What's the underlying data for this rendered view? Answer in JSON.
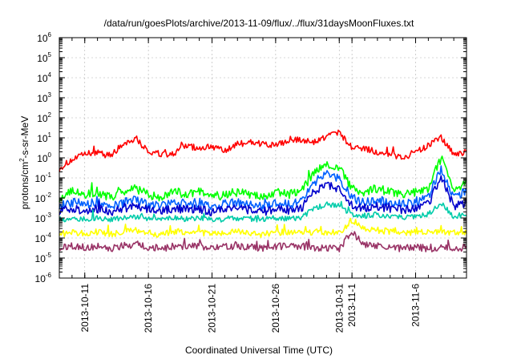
{
  "chart_data": {
    "type": "line",
    "title": "/data/run/goesPlots/archive/2013-11-09/flux/../flux/31daysMoonFluxes.txt",
    "xlabel": "Coordinated Universal Time (UTC)",
    "ylabel_prefix": "protons/cm",
    "ylabel_sup": "2",
    "ylabel_suffix": "-s-sr-MeV",
    "yscale": "log",
    "ylim": [
      1e-06,
      1000000
    ],
    "xlim": [
      "2013-10-09",
      "2013-11-10"
    ],
    "grid": true,
    "legend": "none",
    "ytick_labels": [
      {
        "value": 1e-06,
        "base": "10",
        "exp": "-6"
      },
      {
        "value": 1e-05,
        "base": "10",
        "exp": "-5"
      },
      {
        "value": 0.0001,
        "base": "10",
        "exp": "-4"
      },
      {
        "value": 0.001,
        "base": "10",
        "exp": "-3"
      },
      {
        "value": 0.01,
        "base": "10",
        "exp": "-2"
      },
      {
        "value": 0.1,
        "base": "10",
        "exp": "-1"
      },
      {
        "value": 1,
        "base": "10",
        "exp": "0"
      },
      {
        "value": 10,
        "base": "10",
        "exp": "1"
      },
      {
        "value": 100,
        "base": "10",
        "exp": "2"
      },
      {
        "value": 1000,
        "base": "10",
        "exp": "3"
      },
      {
        "value": 10000,
        "base": "10",
        "exp": "4"
      },
      {
        "value": 100000,
        "base": "10",
        "exp": "5"
      },
      {
        "value": 1000000,
        "base": "10",
        "exp": "6"
      }
    ],
    "xtick_labels": [
      {
        "date": "2013-10-11",
        "label": "2013-10-11"
      },
      {
        "date": "2013-10-16",
        "label": "2013-10-16"
      },
      {
        "date": "2013-10-21",
        "label": "2013-10-21"
      },
      {
        "date": "2013-10-26",
        "label": "2013-10-26"
      },
      {
        "date": "2013-10-31",
        "label": "2013-10-31"
      },
      {
        "date": "2013-11-01",
        "label": "2013-11-1"
      },
      {
        "date": "2013-11-06",
        "label": "2013-11-6"
      }
    ],
    "series": [
      {
        "color": "#ff0000",
        "x": [
          "2013-10-09",
          "2013-10-10",
          "2013-10-11",
          "2013-10-12",
          "2013-10-13",
          "2013-10-14",
          "2013-10-15",
          "2013-10-16",
          "2013-10-17",
          "2013-10-18",
          "2013-10-19",
          "2013-10-20",
          "2013-10-21",
          "2013-10-22",
          "2013-10-23",
          "2013-10-24",
          "2013-10-25",
          "2013-10-26",
          "2013-10-27",
          "2013-10-28",
          "2013-10-29",
          "2013-10-30",
          "2013-10-31",
          "2013-11-01",
          "2013-11-02",
          "2013-11-03",
          "2013-11-04",
          "2013-11-05",
          "2013-11-06",
          "2013-11-07",
          "2013-11-08",
          "2013-11-09",
          "2013-11-10"
        ],
        "values": [
          0.3,
          0.8,
          1.5,
          2,
          1.2,
          5,
          10,
          2,
          1.5,
          1.5,
          4,
          3,
          4,
          2,
          5,
          6,
          5,
          4,
          7,
          8,
          6,
          12,
          20,
          3,
          3,
          2,
          1.5,
          1,
          2,
          4,
          10,
          1.5,
          2
        ]
      },
      {
        "color": "#00ff00",
        "x": [
          "2013-10-09",
          "2013-10-10",
          "2013-10-11",
          "2013-10-12",
          "2013-10-13",
          "2013-10-14",
          "2013-10-15",
          "2013-10-16",
          "2013-10-17",
          "2013-10-18",
          "2013-10-19",
          "2013-10-20",
          "2013-10-21",
          "2013-10-22",
          "2013-10-23",
          "2013-10-24",
          "2013-10-25",
          "2013-10-26",
          "2013-10-27",
          "2013-10-28",
          "2013-10-29",
          "2013-10-30",
          "2013-10-31",
          "2013-11-01",
          "2013-11-02",
          "2013-11-03",
          "2013-11-04",
          "2013-11-05",
          "2013-11-06",
          "2013-11-07",
          "2013-11-08",
          "2013-11-09",
          "2013-11-10"
        ],
        "values": [
          0.01,
          0.02,
          0.015,
          0.02,
          0.01,
          0.02,
          0.03,
          0.015,
          0.01,
          0.02,
          0.015,
          0.02,
          0.01,
          0.015,
          0.02,
          0.015,
          0.01,
          0.02,
          0.015,
          0.02,
          0.2,
          0.5,
          0.3,
          0.03,
          0.02,
          0.03,
          0.02,
          0.015,
          0.02,
          0.03,
          1,
          0.03,
          0.05
        ]
      },
      {
        "color": "#0060ff",
        "x": [
          "2013-10-09",
          "2013-10-10",
          "2013-10-11",
          "2013-10-12",
          "2013-10-13",
          "2013-10-14",
          "2013-10-15",
          "2013-10-16",
          "2013-10-17",
          "2013-10-18",
          "2013-10-19",
          "2013-10-20",
          "2013-10-21",
          "2013-10-22",
          "2013-10-23",
          "2013-10-24",
          "2013-10-25",
          "2013-10-26",
          "2013-10-27",
          "2013-10-28",
          "2013-10-29",
          "2013-10-30",
          "2013-10-31",
          "2013-11-01",
          "2013-11-02",
          "2013-11-03",
          "2013-11-04",
          "2013-11-05",
          "2013-11-06",
          "2013-11-07",
          "2013-11-08",
          "2013-11-09",
          "2013-11-10"
        ],
        "values": [
          0.004,
          0.006,
          0.005,
          0.006,
          0.004,
          0.006,
          0.008,
          0.005,
          0.004,
          0.006,
          0.005,
          0.006,
          0.004,
          0.005,
          0.006,
          0.005,
          0.004,
          0.006,
          0.005,
          0.006,
          0.06,
          0.15,
          0.1,
          0.01,
          0.006,
          0.008,
          0.006,
          0.005,
          0.006,
          0.01,
          0.3,
          0.01,
          0.02
        ]
      },
      {
        "color": "#0000cc",
        "x": [
          "2013-10-09",
          "2013-10-10",
          "2013-10-11",
          "2013-10-12",
          "2013-10-13",
          "2013-10-14",
          "2013-10-15",
          "2013-10-16",
          "2013-10-17",
          "2013-10-18",
          "2013-10-19",
          "2013-10-20",
          "2013-10-21",
          "2013-10-22",
          "2013-10-23",
          "2013-10-24",
          "2013-10-25",
          "2013-10-26",
          "2013-10-27",
          "2013-10-28",
          "2013-10-29",
          "2013-10-30",
          "2013-10-31",
          "2013-11-01",
          "2013-11-02",
          "2013-11-03",
          "2013-11-04",
          "2013-11-05",
          "2013-11-06",
          "2013-11-07",
          "2013-11-08",
          "2013-11-09",
          "2013-11-10"
        ],
        "values": [
          0.002,
          0.003,
          0.0025,
          0.003,
          0.002,
          0.003,
          0.004,
          0.0025,
          0.002,
          0.003,
          0.0025,
          0.003,
          0.002,
          0.0025,
          0.003,
          0.0025,
          0.002,
          0.003,
          0.0025,
          0.003,
          0.02,
          0.05,
          0.03,
          0.004,
          0.003,
          0.004,
          0.003,
          0.0025,
          0.003,
          0.005,
          0.1,
          0.004,
          0.006
        ]
      },
      {
        "color": "#00ccaa",
        "x": [
          "2013-10-09",
          "2013-10-10",
          "2013-10-11",
          "2013-10-12",
          "2013-10-13",
          "2013-10-14",
          "2013-10-15",
          "2013-10-16",
          "2013-10-17",
          "2013-10-18",
          "2013-10-19",
          "2013-10-20",
          "2013-10-21",
          "2013-10-22",
          "2013-10-23",
          "2013-10-24",
          "2013-10-25",
          "2013-10-26",
          "2013-10-27",
          "2013-10-28",
          "2013-10-29",
          "2013-10-30",
          "2013-10-31",
          "2013-11-01",
          "2013-11-02",
          "2013-11-03",
          "2013-11-04",
          "2013-11-05",
          "2013-11-06",
          "2013-11-07",
          "2013-11-08",
          "2013-11-09",
          "2013-11-10"
        ],
        "values": [
          0.0008,
          0.001,
          0.0009,
          0.001,
          0.0008,
          0.001,
          0.0012,
          0.0009,
          0.0008,
          0.001,
          0.0009,
          0.001,
          0.0008,
          0.0009,
          0.001,
          0.0009,
          0.0008,
          0.001,
          0.0009,
          0.001,
          0.003,
          0.005,
          0.004,
          0.0015,
          0.0012,
          0.0015,
          0.0012,
          0.001,
          0.0012,
          0.0015,
          0.005,
          0.0012,
          0.0015
        ]
      },
      {
        "color": "#ffff00",
        "x": [
          "2013-10-09",
          "2013-10-10",
          "2013-10-11",
          "2013-10-12",
          "2013-10-13",
          "2013-10-14",
          "2013-10-15",
          "2013-10-16",
          "2013-10-17",
          "2013-10-18",
          "2013-10-19",
          "2013-10-20",
          "2013-10-21",
          "2013-10-22",
          "2013-10-23",
          "2013-10-24",
          "2013-10-25",
          "2013-10-26",
          "2013-10-27",
          "2013-10-28",
          "2013-10-29",
          "2013-10-30",
          "2013-10-31",
          "2013-11-01",
          "2013-11-02",
          "2013-11-03",
          "2013-11-04",
          "2013-11-05",
          "2013-11-06",
          "2013-11-07",
          "2013-11-08",
          "2013-11-09",
          "2013-11-10"
        ],
        "values": [
          0.00015,
          0.0002,
          0.00018,
          0.0002,
          0.00015,
          0.0002,
          0.00025,
          0.00018,
          0.00015,
          0.0002,
          0.00018,
          0.0002,
          0.00015,
          0.00018,
          0.0002,
          0.00018,
          0.00015,
          0.0002,
          0.00018,
          0.0002,
          0.0002,
          0.0002,
          0.00018,
          0.0008,
          0.0003,
          0.00025,
          0.0002,
          0.00018,
          0.0002,
          0.00018,
          0.0002,
          0.00018,
          0.0002
        ]
      },
      {
        "color": "#993366",
        "x": [
          "2013-10-09",
          "2013-10-10",
          "2013-10-11",
          "2013-10-12",
          "2013-10-13",
          "2013-10-14",
          "2013-10-15",
          "2013-10-16",
          "2013-10-17",
          "2013-10-18",
          "2013-10-19",
          "2013-10-20",
          "2013-10-21",
          "2013-10-22",
          "2013-10-23",
          "2013-10-24",
          "2013-10-25",
          "2013-10-26",
          "2013-10-27",
          "2013-10-28",
          "2013-10-29",
          "2013-10-30",
          "2013-10-31",
          "2013-11-01",
          "2013-11-02",
          "2013-11-03",
          "2013-11-04",
          "2013-11-05",
          "2013-11-06",
          "2013-11-07",
          "2013-11-08",
          "2013-11-09",
          "2013-11-10"
        ],
        "values": [
          3e-05,
          4e-05,
          3.5e-05,
          4e-05,
          3e-05,
          4e-05,
          5e-05,
          3.5e-05,
          3e-05,
          4e-05,
          3.5e-05,
          4e-05,
          3e-05,
          3.5e-05,
          4e-05,
          3.5e-05,
          3e-05,
          4e-05,
          3.5e-05,
          4e-05,
          3e-05,
          3e-05,
          3e-05,
          0.0002,
          5e-05,
          4e-05,
          3.5e-05,
          3e-05,
          3.5e-05,
          3e-05,
          3.5e-05,
          3e-05,
          3.5e-05
        ]
      }
    ]
  }
}
